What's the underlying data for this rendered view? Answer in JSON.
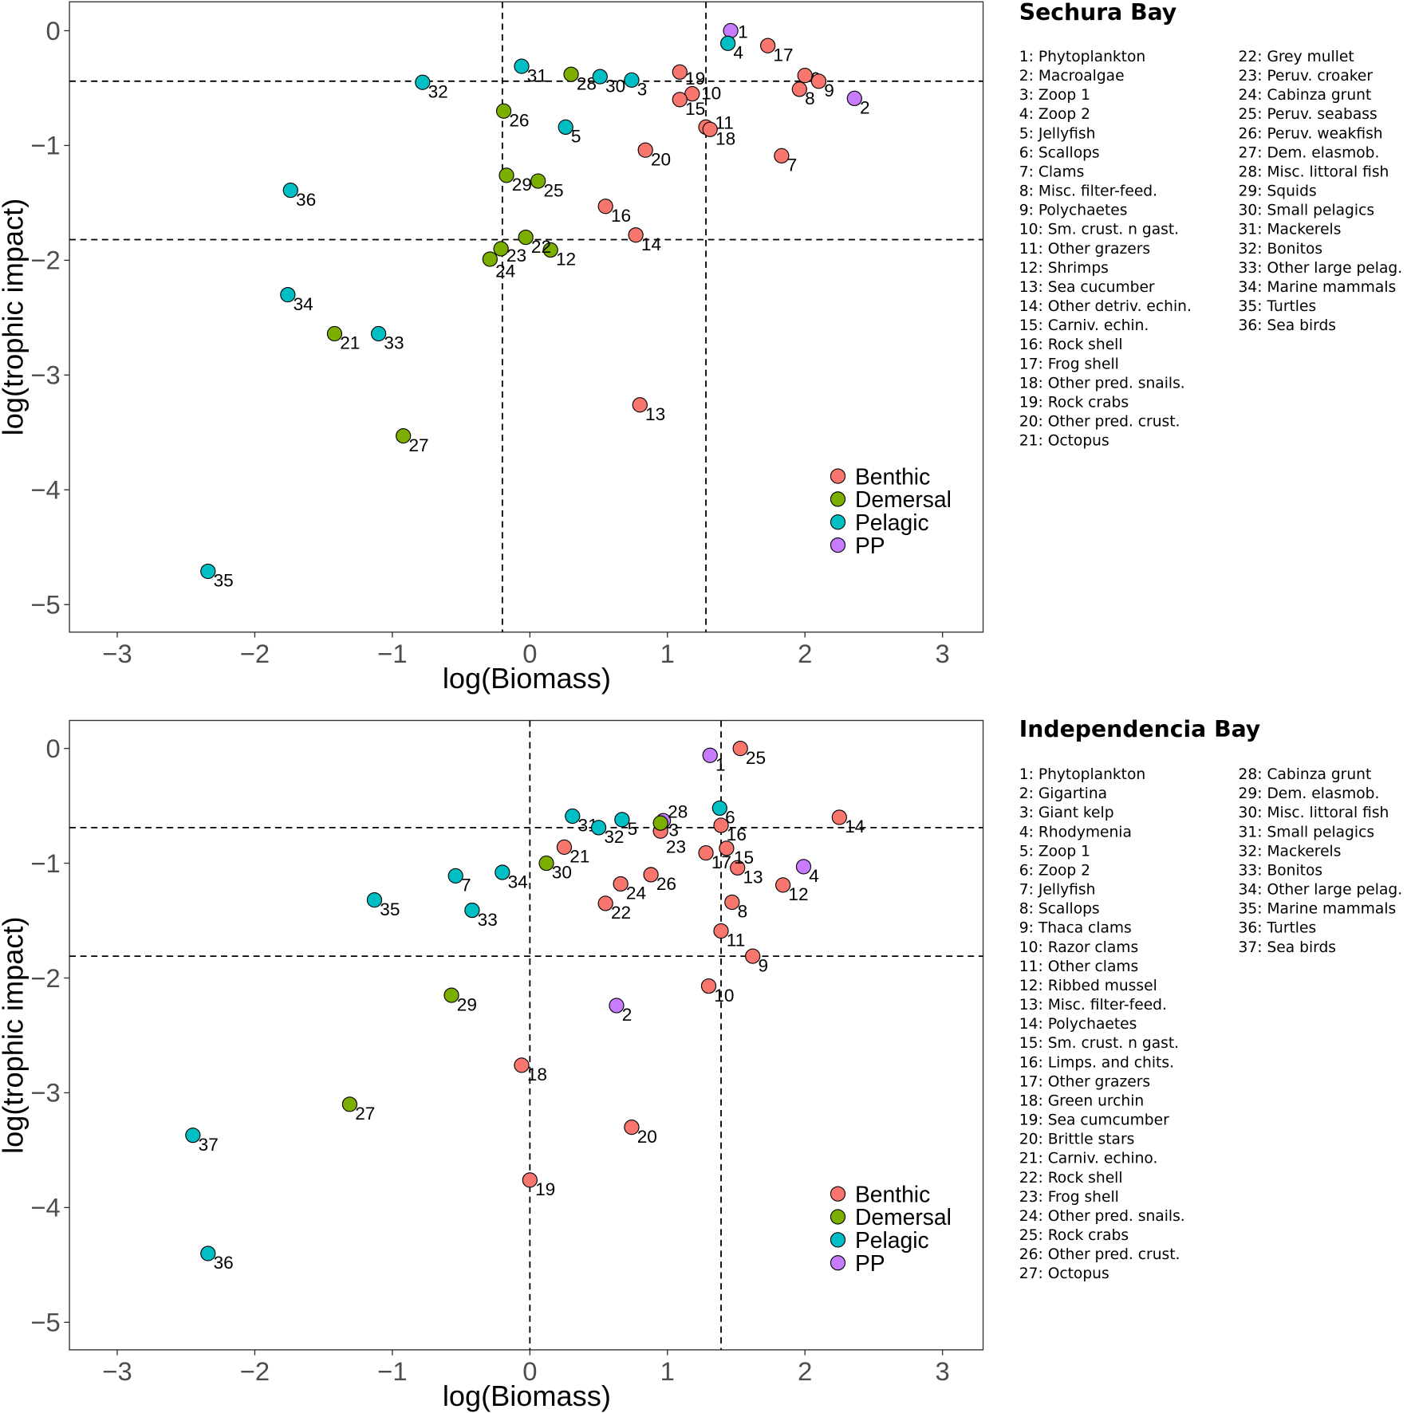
{
  "colors": {
    "Benthic": "#F8766D",
    "Demersal": "#7CAE00",
    "Pelagic": "#00BFC4",
    "PP": "#C77CFF"
  },
  "chart_data": [
    {
      "type": "scatter",
      "title": "Sechura Bay",
      "xlabel": "log(Biomass)",
      "ylabel": "log(trophic impact)",
      "xlim": [
        -3.3,
        3.3
      ],
      "ylim": [
        -5.25,
        0.25
      ],
      "xticks": [
        -3,
        -2,
        -1,
        0,
        1,
        2,
        3
      ],
      "yticks": [
        0,
        -1,
        -2,
        -3,
        -4,
        -5
      ],
      "hlines": [
        -0.44,
        -1.82
      ],
      "vlines": [
        -0.2,
        1.28
      ],
      "legend": {
        "position": "bottom-right",
        "entries": [
          "Benthic",
          "Demersal",
          "Pelagic",
          "PP"
        ]
      },
      "points": [
        {
          "id": "1",
          "x": 1.46,
          "y": 0.0,
          "group": "PP"
        },
        {
          "id": "2",
          "x": 2.36,
          "y": -0.59,
          "group": "PP"
        },
        {
          "id": "3",
          "x": 0.74,
          "y": -0.43,
          "group": "Pelagic"
        },
        {
          "id": "4",
          "x": 1.44,
          "y": -0.11,
          "group": "Pelagic"
        },
        {
          "id": "5",
          "x": 0.26,
          "y": -0.84,
          "group": "Pelagic"
        },
        {
          "id": "6",
          "x": 2.0,
          "y": -0.39,
          "group": "Benthic"
        },
        {
          "id": "7",
          "x": 1.83,
          "y": -1.09,
          "group": "Benthic"
        },
        {
          "id": "8",
          "x": 1.96,
          "y": -0.51,
          "group": "Benthic"
        },
        {
          "id": "9",
          "x": 2.1,
          "y": -0.44,
          "group": "Benthic"
        },
        {
          "id": "10",
          "x": 1.18,
          "y": -0.55,
          "group": "Benthic"
        },
        {
          "id": "11",
          "x": 1.28,
          "y": -0.84,
          "group": "Benthic"
        },
        {
          "id": "12",
          "x": 0.15,
          "y": -1.91,
          "group": "Demersal"
        },
        {
          "id": "13",
          "x": 0.8,
          "y": -3.26,
          "group": "Benthic"
        },
        {
          "id": "14",
          "x": 0.77,
          "y": -1.78,
          "group": "Benthic"
        },
        {
          "id": "15",
          "x": 1.09,
          "y": -0.6,
          "group": "Benthic"
        },
        {
          "id": "16",
          "x": 0.55,
          "y": -1.53,
          "group": "Benthic"
        },
        {
          "id": "17",
          "x": 1.73,
          "y": -0.13,
          "group": "Benthic"
        },
        {
          "id": "18",
          "x": 1.31,
          "y": -0.86,
          "group": "Benthic"
        },
        {
          "id": "19",
          "x": 1.09,
          "y": -0.36,
          "group": "Benthic"
        },
        {
          "id": "20",
          "x": 0.84,
          "y": -1.04,
          "group": "Benthic"
        },
        {
          "id": "21",
          "x": -1.42,
          "y": -2.64,
          "group": "Demersal"
        },
        {
          "id": "22",
          "x": -0.03,
          "y": -1.8,
          "group": "Demersal"
        },
        {
          "id": "23",
          "x": -0.21,
          "y": -1.9,
          "group": "Demersal"
        },
        {
          "id": "24",
          "x": -0.29,
          "y": -1.99,
          "group": "Demersal"
        },
        {
          "id": "25",
          "x": 0.06,
          "y": -1.31,
          "group": "Demersal"
        },
        {
          "id": "26",
          "x": -0.19,
          "y": -0.7,
          "group": "Demersal"
        },
        {
          "id": "27",
          "x": -0.92,
          "y": -3.53,
          "group": "Demersal"
        },
        {
          "id": "28",
          "x": 0.3,
          "y": -0.38,
          "group": "Demersal"
        },
        {
          "id": "29",
          "x": -0.17,
          "y": -1.26,
          "group": "Demersal"
        },
        {
          "id": "30",
          "x": 0.51,
          "y": -0.4,
          "group": "Pelagic"
        },
        {
          "id": "31",
          "x": -0.06,
          "y": -0.31,
          "group": "Pelagic"
        },
        {
          "id": "32",
          "x": -0.78,
          "y": -0.45,
          "group": "Pelagic"
        },
        {
          "id": "33",
          "x": -1.1,
          "y": -2.64,
          "group": "Pelagic"
        },
        {
          "id": "34",
          "x": -1.76,
          "y": -2.3,
          "group": "Pelagic"
        },
        {
          "id": "35",
          "x": -2.34,
          "y": -4.71,
          "group": "Pelagic"
        },
        {
          "id": "36",
          "x": -1.74,
          "y": -1.39,
          "group": "Pelagic"
        }
      ],
      "species": [
        "1: Phytoplankton",
        "2: Macroalgae",
        "3: Zoop 1",
        "4: Zoop 2",
        "5: Jellyfish",
        "6: Scallops",
        "7: Clams",
        "8: Misc. filter-feed.",
        "9: Polychaetes",
        "10: Sm. crust. n gast.",
        "11: Other grazers",
        "12: Shrimps",
        "13: Sea cucumber",
        "14: Other detriv. echin.",
        "15: Carniv. echin.",
        "16: Rock shell",
        "17: Frog shell",
        "18: Other pred. snails.",
        "19: Rock crabs",
        "20: Other pred. crust.",
        "21: Octopus",
        "22: Grey mullet",
        "23: Peruv. croaker",
        "24: Cabinza grunt",
        "25: Peruv. seabass",
        "26: Peruv. weakfish",
        "27: Dem. elasmob.",
        "28: Misc. littoral fish",
        "29: Squids",
        "30: Small pelagics",
        "31: Mackerels",
        "32: Bonitos",
        "33: Other large pelag.",
        "34: Marine mammals",
        "35: Turtles",
        "36: Sea birds"
      ],
      "species_col1_count": 21
    },
    {
      "type": "scatter",
      "title": "Independencia Bay",
      "xlabel": "log(Biomass)",
      "ylabel": "log(trophic impact)",
      "xlim": [
        -3.3,
        3.3
      ],
      "ylim": [
        -5.25,
        0.25
      ],
      "xticks": [
        -3,
        -2,
        -1,
        0,
        1,
        2,
        3
      ],
      "yticks": [
        0,
        -1,
        -2,
        -3,
        -4,
        -5
      ],
      "hlines": [
        -0.69,
        -1.81
      ],
      "vlines": [
        0.0,
        1.39
      ],
      "legend": {
        "position": "bottom-right",
        "entries": [
          "Benthic",
          "Demersal",
          "Pelagic",
          "PP"
        ]
      },
      "points": [
        {
          "id": "1",
          "x": 1.31,
          "y": -0.06,
          "group": "PP"
        },
        {
          "id": "2",
          "x": 0.63,
          "y": -2.24,
          "group": "PP"
        },
        {
          "id": "3",
          "x": 0.97,
          "y": -0.63,
          "group": "PP"
        },
        {
          "id": "4",
          "x": 1.99,
          "y": -1.03,
          "group": "PP"
        },
        {
          "id": "5",
          "x": 0.67,
          "y": -0.62,
          "group": "Pelagic"
        },
        {
          "id": "6",
          "x": 1.38,
          "y": -0.52,
          "group": "Pelagic"
        },
        {
          "id": "7",
          "x": -0.54,
          "y": -1.11,
          "group": "Pelagic"
        },
        {
          "id": "8",
          "x": 1.47,
          "y": -1.34,
          "group": "Benthic"
        },
        {
          "id": "9",
          "x": 1.62,
          "y": -1.81,
          "group": "Benthic"
        },
        {
          "id": "10",
          "x": 1.3,
          "y": -2.07,
          "group": "Benthic"
        },
        {
          "id": "11",
          "x": 1.39,
          "y": -1.59,
          "group": "Benthic"
        },
        {
          "id": "12",
          "x": 1.84,
          "y": -1.19,
          "group": "Benthic"
        },
        {
          "id": "13",
          "x": 1.51,
          "y": -1.04,
          "group": "Benthic"
        },
        {
          "id": "14",
          "x": 2.25,
          "y": -0.6,
          "group": "Benthic"
        },
        {
          "id": "15",
          "x": 1.43,
          "y": -0.87,
          "group": "Benthic"
        },
        {
          "id": "16",
          "x": 1.39,
          "y": -0.67,
          "group": "Benthic"
        },
        {
          "id": "17",
          "x": 1.28,
          "y": -0.91,
          "group": "Benthic"
        },
        {
          "id": "18",
          "x": -0.06,
          "y": -2.76,
          "group": "Benthic"
        },
        {
          "id": "19",
          "x": 0.0,
          "y": -3.76,
          "group": "Benthic"
        },
        {
          "id": "20",
          "x": 0.74,
          "y": -3.3,
          "group": "Benthic"
        },
        {
          "id": "21",
          "x": 0.25,
          "y": -0.86,
          "group": "Benthic"
        },
        {
          "id": "22",
          "x": 0.55,
          "y": -1.35,
          "group": "Benthic"
        },
        {
          "id": "23",
          "x": 0.95,
          "y": -0.72,
          "group": "Benthic"
        },
        {
          "id": "24",
          "x": 0.66,
          "y": -1.18,
          "group": "Benthic"
        },
        {
          "id": "25",
          "x": 1.53,
          "y": 0.0,
          "group": "Benthic"
        },
        {
          "id": "26",
          "x": 0.88,
          "y": -1.1,
          "group": "Benthic"
        },
        {
          "id": "27",
          "x": -1.31,
          "y": -3.1,
          "group": "Demersal"
        },
        {
          "id": "28",
          "x": 0.95,
          "y": -0.65,
          "group": "Demersal"
        },
        {
          "id": "29",
          "x": -0.57,
          "y": -2.15,
          "group": "Demersal"
        },
        {
          "id": "30",
          "x": 0.12,
          "y": -1.0,
          "group": "Demersal"
        },
        {
          "id": "31",
          "x": 0.31,
          "y": -0.59,
          "group": "Pelagic"
        },
        {
          "id": "32",
          "x": 0.5,
          "y": -0.69,
          "group": "Pelagic"
        },
        {
          "id": "33",
          "x": -0.42,
          "y": -1.41,
          "group": "Pelagic"
        },
        {
          "id": "34",
          "x": -0.2,
          "y": -1.08,
          "group": "Pelagic"
        },
        {
          "id": "35",
          "x": -1.13,
          "y": -1.32,
          "group": "Pelagic"
        },
        {
          "id": "36",
          "x": -2.34,
          "y": -4.4,
          "group": "Pelagic"
        },
        {
          "id": "37",
          "x": -2.45,
          "y": -3.37,
          "group": "Pelagic"
        }
      ],
      "species": [
        "1: Phytoplankton",
        "2: Gigartina",
        "3: Giant kelp",
        "4: Rhodymenia",
        "5: Zoop 1",
        "6: Zoop 2",
        "7: Jellyfish",
        "8: Scallops",
        "9: Thaca clams",
        "10: Razor clams",
        "11: Other clams",
        "12: Ribbed mussel",
        "13: Misc. filter-feed.",
        "14: Polychaetes",
        "15: Sm. crust. n gast.",
        "16: Limps. and chits.",
        "17: Other grazers",
        "18: Green urchin",
        "19: Sea cumcumber",
        "20: Brittle stars",
        "21: Carniv. echino.",
        "22: Rock shell",
        "23: Frog shell",
        "24: Other pred. snails.",
        "25: Rock crabs",
        "26: Other pred. crust.",
        "27: Octopus",
        "28: Cabinza grunt",
        "29: Dem. elasmob.",
        "30: Misc. littoral fish",
        "31: Small pelagics",
        "32: Mackerels",
        "33: Bonitos",
        "34: Other large pelag.",
        "35: Marine mammals",
        "36: Turtles",
        "37: Sea birds"
      ],
      "species_col1_count": 27
    }
  ]
}
